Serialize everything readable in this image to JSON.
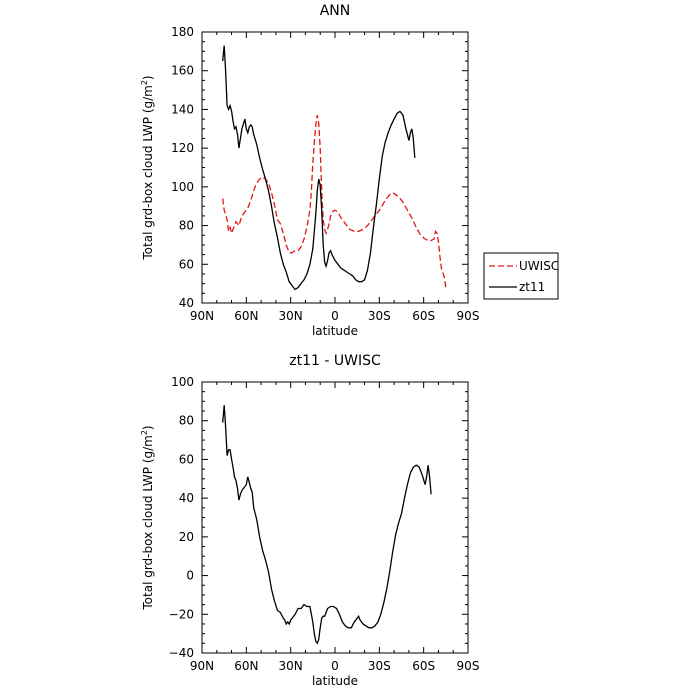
{
  "chart_data": [
    {
      "type": "line",
      "title": "ANN",
      "xlabel": "latitude",
      "ylabel": "Total grd-box cloud LWP (g/m",
      "ylabel_sup": "2",
      "ylabel_close": ")",
      "xlim": [
        90,
        -90
      ],
      "ylim": [
        40,
        180
      ],
      "xticks": [
        90,
        60,
        30,
        0,
        -30,
        -60,
        -90
      ],
      "xtick_labels": [
        "90N",
        "60N",
        "30N",
        "0",
        "30S",
        "60S",
        "90S"
      ],
      "yticks": [
        40,
        60,
        80,
        100,
        120,
        140,
        160,
        180
      ],
      "ytick_labels": [
        "40",
        "60",
        "80",
        "100",
        "120",
        "140",
        "160",
        "180"
      ],
      "legend_position": "right",
      "series": [
        {
          "name": "UWISC",
          "color": "#e01818",
          "dash": "dashed",
          "points": [
            [
              76,
              94
            ],
            [
              75,
              88
            ],
            [
              73,
              83
            ],
            [
              72,
              77
            ],
            [
              71,
              79
            ],
            [
              70,
              76
            ],
            [
              69,
              78
            ],
            [
              67,
              82
            ],
            [
              65,
              80
            ],
            [
              63,
              85
            ],
            [
              61,
              87
            ],
            [
              59,
              89
            ],
            [
              57,
              93
            ],
            [
              55,
              98
            ],
            [
              53,
              102
            ],
            [
              51,
              104
            ],
            [
              49,
              105
            ],
            [
              47,
              104
            ],
            [
              45,
              102
            ],
            [
              43,
              97
            ],
            [
              41,
              91
            ],
            [
              39,
              83
            ],
            [
              37,
              81
            ],
            [
              35,
              76
            ],
            [
              33,
              70
            ],
            [
              31,
              66
            ],
            [
              29,
              66
            ],
            [
              27,
              67
            ],
            [
              25,
              67
            ],
            [
              23,
              69
            ],
            [
              21,
              73
            ],
            [
              19,
              79
            ],
            [
              17,
              88
            ],
            [
              16,
              98
            ],
            [
              15,
              112
            ],
            [
              14,
              123
            ],
            [
              13,
              132
            ],
            [
              12,
              137
            ],
            [
              11,
              133
            ],
            [
              10,
              120
            ],
            [
              9,
              98
            ],
            [
              8,
              83
            ],
            [
              7,
              78
            ],
            [
              6,
              76
            ],
            [
              5,
              78
            ],
            [
              4,
              81
            ],
            [
              3,
              85
            ],
            [
              2,
              87
            ],
            [
              0,
              88
            ],
            [
              -2,
              87
            ],
            [
              -4,
              84
            ],
            [
              -7,
              81
            ],
            [
              -10,
              78
            ],
            [
              -13,
              77
            ],
            [
              -16,
              77
            ],
            [
              -19,
              78
            ],
            [
              -22,
              80
            ],
            [
              -25,
              83
            ],
            [
              -28,
              86
            ],
            [
              -31,
              89
            ],
            [
              -34,
              93
            ],
            [
              -37,
              96
            ],
            [
              -39,
              97
            ],
            [
              -41,
              96
            ],
            [
              -43,
              95
            ],
            [
              -46,
              92
            ],
            [
              -49,
              88
            ],
            [
              -52,
              84
            ],
            [
              -55,
              79
            ],
            [
              -58,
              75
            ],
            [
              -61,
              73
            ],
            [
              -64,
              72
            ],
            [
              -67,
              73
            ],
            [
              -68,
              77
            ],
            [
              -69,
              76
            ],
            [
              -70,
              72
            ],
            [
              -71,
              64
            ],
            [
              -72,
              58
            ],
            [
              -74,
              53
            ],
            [
              -75,
              48
            ]
          ]
        },
        {
          "name": "zt11",
          "color": "#000000",
          "dash": "solid",
          "points": [
            [
              76,
              165
            ],
            [
              75,
              173
            ],
            [
              74,
              160
            ],
            [
              73,
              142
            ],
            [
              72,
              140
            ],
            [
              71,
              142
            ],
            [
              70,
              139
            ],
            [
              69,
              134
            ],
            [
              68,
              130
            ],
            [
              67,
              131
            ],
            [
              66,
              127
            ],
            [
              65,
              120
            ],
            [
              64,
              125
            ],
            [
              63,
              130
            ],
            [
              61,
              135
            ],
            [
              60,
              130
            ],
            [
              59,
              128
            ],
            [
              58,
              131
            ],
            [
              57,
              132
            ],
            [
              56,
              131
            ],
            [
              55,
              127
            ],
            [
              53,
              122
            ],
            [
              51,
              115
            ],
            [
              49,
              109
            ],
            [
              47,
              104
            ],
            [
              45,
              98
            ],
            [
              43,
              90
            ],
            [
              41,
              81
            ],
            [
              39,
              74
            ],
            [
              37,
              66
            ],
            [
              35,
              60
            ],
            [
              33,
              56
            ],
            [
              31,
              51
            ],
            [
              29,
              49
            ],
            [
              27,
              47
            ],
            [
              25,
              48
            ],
            [
              23,
              50
            ],
            [
              21,
              52
            ],
            [
              19,
              55
            ],
            [
              17,
              60
            ],
            [
              15,
              68
            ],
            [
              13,
              86
            ],
            [
              12,
              98
            ],
            [
              11,
              104
            ],
            [
              10,
              101
            ],
            [
              9,
              88
            ],
            [
              8,
              70
            ],
            [
              7,
              61
            ],
            [
              6,
              59
            ],
            [
              5,
              62
            ],
            [
              4,
              66
            ],
            [
              3,
              67
            ],
            [
              2,
              65
            ],
            [
              0,
              62
            ],
            [
              -2,
              60
            ],
            [
              -4,
              58
            ],
            [
              -6,
              57
            ],
            [
              -8,
              56
            ],
            [
              -10,
              55
            ],
            [
              -12,
              54
            ],
            [
              -14,
              52
            ],
            [
              -16,
              51
            ],
            [
              -18,
              51
            ],
            [
              -20,
              52
            ],
            [
              -22,
              57
            ],
            [
              -24,
              66
            ],
            [
              -26,
              79
            ],
            [
              -28,
              91
            ],
            [
              -30,
              104
            ],
            [
              -32,
              116
            ],
            [
              -34,
              123
            ],
            [
              -36,
              128
            ],
            [
              -38,
              132
            ],
            [
              -40,
              135
            ],
            [
              -42,
              138
            ],
            [
              -44,
              139
            ],
            [
              -46,
              137
            ],
            [
              -48,
              130
            ],
            [
              -50,
              124
            ],
            [
              -51,
              128
            ],
            [
              -52,
              130
            ],
            [
              -53,
              125
            ],
            [
              -54,
              115
            ]
          ]
        }
      ]
    },
    {
      "type": "line",
      "title": "zt11 - UWISC",
      "xlabel": "latitude",
      "ylabel": "Total grd-box cloud LWP (g/m",
      "ylabel_sup": "2",
      "ylabel_close": ")",
      "xlim": [
        90,
        -90
      ],
      "ylim": [
        -40,
        100
      ],
      "xticks": [
        90,
        60,
        30,
        0,
        -30,
        -60,
        -90
      ],
      "xtick_labels": [
        "90N",
        "60N",
        "30N",
        "0",
        "30S",
        "60S",
        "90S"
      ],
      "yticks": [
        -40,
        -20,
        0,
        20,
        40,
        60,
        80,
        100
      ],
      "ytick_labels": [
        "−40",
        "−20",
        "0",
        "20",
        "40",
        "60",
        "80",
        "100"
      ],
      "series": [
        {
          "color": "#000000",
          "dash": "solid",
          "points": [
            [
              76,
              79
            ],
            [
              75,
              88
            ],
            [
              74,
              77
            ],
            [
              73,
              62
            ],
            [
              72,
              65
            ],
            [
              71,
              65
            ],
            [
              70,
              60
            ],
            [
              69,
              56
            ],
            [
              68,
              51
            ],
            [
              67,
              49
            ],
            [
              66,
              45
            ],
            [
              65,
              39
            ],
            [
              64,
              42
            ],
            [
              63,
              44
            ],
            [
              61,
              46
            ],
            [
              60,
              47
            ],
            [
              59,
              51
            ],
            [
              58,
              48
            ],
            [
              57,
              45
            ],
            [
              56,
              43
            ],
            [
              55,
              35
            ],
            [
              53,
              29
            ],
            [
              51,
              20
            ],
            [
              49,
              13
            ],
            [
              47,
              8
            ],
            [
              45,
              2
            ],
            [
              43,
              -7
            ],
            [
              41,
              -13
            ],
            [
              39,
              -18
            ],
            [
              37,
              -19
            ],
            [
              35,
              -22
            ],
            [
              34,
              -23
            ],
            [
              33,
              -25
            ],
            [
              32,
              -24
            ],
            [
              31,
              -25
            ],
            [
              30,
              -23
            ],
            [
              29,
              -22
            ],
            [
              27,
              -20
            ],
            [
              25,
              -17
            ],
            [
              23,
              -17
            ],
            [
              21,
              -15
            ],
            [
              19,
              -16
            ],
            [
              17,
              -16
            ],
            [
              15,
              -24
            ],
            [
              14,
              -30
            ],
            [
              13,
              -34
            ],
            [
              12,
              -35
            ],
            [
              11,
              -33
            ],
            [
              10,
              -27
            ],
            [
              9,
              -22
            ],
            [
              8,
              -21
            ],
            [
              7,
              -21
            ],
            [
              6,
              -19
            ],
            [
              5,
              -17
            ],
            [
              3,
              -16
            ],
            [
              1,
              -16
            ],
            [
              -1,
              -17
            ],
            [
              -3,
              -20
            ],
            [
              -5,
              -24
            ],
            [
              -7,
              -26
            ],
            [
              -9,
              -27
            ],
            [
              -11,
              -27
            ],
            [
              -13,
              -24
            ],
            [
              -15,
              -22
            ],
            [
              -16,
              -21
            ],
            [
              -17,
              -23
            ],
            [
              -19,
              -25
            ],
            [
              -21,
              -26
            ],
            [
              -23,
              -27
            ],
            [
              -25,
              -27
            ],
            [
              -27,
              -26
            ],
            [
              -29,
              -24
            ],
            [
              -31,
              -20
            ],
            [
              -33,
              -14
            ],
            [
              -35,
              -7
            ],
            [
              -37,
              2
            ],
            [
              -39,
              12
            ],
            [
              -41,
              21
            ],
            [
              -43,
              27
            ],
            [
              -45,
              32
            ],
            [
              -47,
              40
            ],
            [
              -49,
              47
            ],
            [
              -51,
              53
            ],
            [
              -53,
              56
            ],
            [
              -55,
              57
            ],
            [
              -57,
              56
            ],
            [
              -59,
              52
            ],
            [
              -61,
              47
            ],
            [
              -62,
              51
            ],
            [
              -63,
              57
            ],
            [
              -64,
              51
            ],
            [
              -65,
              42
            ]
          ]
        }
      ]
    }
  ]
}
